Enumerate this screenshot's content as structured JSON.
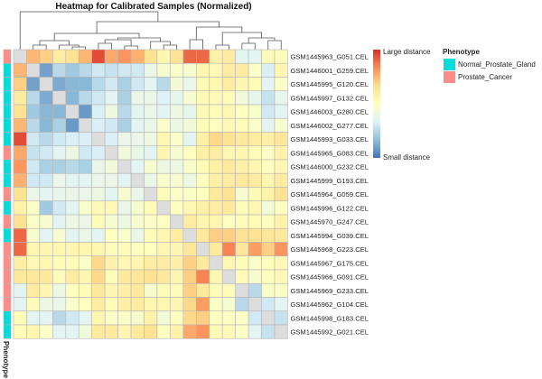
{
  "chart_data": {
    "type": "heatmap",
    "title": "Heatmap for Calibrated Samples (Normalized)",
    "rows": [
      "GSM1445963_G051.CEL",
      "GSM1446001_G259.CEL",
      "GSM1445995_G120.CEL",
      "GSM1445997_G132.CEL",
      "GSM1446003_G280.CEL",
      "GSM1446002_G277.CEL",
      "GSM1445993_G033.CEL",
      "GSM1445965_G083.CEL",
      "GSM1446000_G232.CEL",
      "GSM1445999_G193.CEL",
      "GSM1445964_G059.CEL",
      "GSM1445996_G122.CEL",
      "GSM1445970_G247.CEL",
      "GSM1445994_G039.CEL",
      "GSM1445968_G223.CEL",
      "GSM1445967_G175.CEL",
      "GSM1445966_G091.CEL",
      "GSM1445969_G233.CEL",
      "GSM1445962_G104.CEL",
      "GSM1445998_G183.CEL",
      "GSM1445992_G021.CEL"
    ],
    "phenotype": [
      "Prostate_Cancer",
      "Normal_Prostate_Gland",
      "Normal_Prostate_Gland",
      "Normal_Prostate_Gland",
      "Normal_Prostate_Gland",
      "Normal_Prostate_Gland",
      "Normal_Prostate_Gland",
      "Prostate_Cancer",
      "Normal_Prostate_Gland",
      "Normal_Prostate_Gland",
      "Prostate_Cancer",
      "Normal_Prostate_Gland",
      "Prostate_Cancer",
      "Normal_Prostate_Gland",
      "Prostate_Cancer",
      "Prostate_Cancer",
      "Prostate_Cancer",
      "Prostate_Cancer",
      "Prostate_Cancer",
      "Normal_Prostate_Gland",
      "Normal_Prostate_Gland"
    ],
    "value_range": [
      0,
      1
    ],
    "values": [
      [
        null,
        0.75,
        0.7,
        0.6,
        0.65,
        0.75,
        0.95,
        0.78,
        0.82,
        0.76,
        0.65,
        0.55,
        0.65,
        0.9,
        0.9,
        0.58,
        0.6,
        0.35,
        0.35,
        0.52,
        0.52
      ],
      [
        0.75,
        null,
        0.1,
        0.25,
        0.2,
        0.25,
        0.3,
        0.28,
        0.3,
        0.3,
        0.38,
        0.45,
        0.47,
        0.45,
        0.55,
        0.53,
        0.6,
        0.6,
        0.48,
        0.32,
        0.55
      ],
      [
        0.7,
        0.1,
        null,
        0.12,
        0.15,
        0.15,
        0.25,
        0.3,
        0.22,
        0.3,
        0.35,
        0.25,
        0.43,
        0.38,
        0.53,
        0.55,
        0.6,
        0.55,
        0.52,
        0.35,
        0.48
      ],
      [
        0.6,
        0.25,
        0.12,
        null,
        0.15,
        0.25,
        0.3,
        0.35,
        0.22,
        0.38,
        0.38,
        0.33,
        0.37,
        0.45,
        0.53,
        0.53,
        0.52,
        0.42,
        0.37,
        0.28,
        0.37
      ],
      [
        0.65,
        0.2,
        0.15,
        0.15,
        null,
        0.08,
        0.32,
        0.4,
        0.25,
        0.35,
        0.38,
        0.35,
        0.4,
        0.37,
        0.53,
        0.52,
        0.55,
        0.5,
        0.47,
        0.3,
        0.35
      ],
      [
        0.75,
        0.25,
        0.15,
        0.22,
        0.08,
        null,
        0.32,
        0.3,
        0.22,
        0.35,
        0.38,
        0.47,
        0.4,
        0.42,
        0.52,
        0.5,
        0.53,
        0.52,
        0.48,
        0.35,
        0.45
      ],
      [
        0.95,
        0.3,
        0.25,
        0.3,
        0.32,
        0.32,
        null,
        0.32,
        0.38,
        0.38,
        0.4,
        0.55,
        0.48,
        0.35,
        0.58,
        0.68,
        0.65,
        0.62,
        0.6,
        0.58,
        0.63
      ],
      [
        0.78,
        0.28,
        0.3,
        0.35,
        0.4,
        0.3,
        0.32,
        null,
        0.42,
        0.38,
        0.35,
        0.55,
        0.45,
        0.5,
        0.58,
        0.6,
        0.55,
        0.55,
        0.52,
        0.48,
        0.57
      ],
      [
        0.82,
        0.3,
        0.22,
        0.22,
        0.25,
        0.22,
        0.38,
        0.42,
        null,
        0.35,
        0.45,
        0.4,
        0.4,
        0.47,
        0.52,
        0.58,
        0.62,
        0.58,
        0.55,
        0.5,
        0.55
      ],
      [
        0.76,
        0.3,
        0.3,
        0.38,
        0.35,
        0.35,
        0.38,
        0.38,
        0.35,
        null,
        0.38,
        0.47,
        0.45,
        0.4,
        0.5,
        0.58,
        0.6,
        0.62,
        0.6,
        0.55,
        0.6
      ],
      [
        0.65,
        0.38,
        0.35,
        0.37,
        0.38,
        0.38,
        0.4,
        0.35,
        0.45,
        0.38,
        null,
        0.52,
        0.48,
        0.48,
        0.5,
        0.62,
        0.65,
        0.45,
        0.53,
        0.57,
        0.65
      ],
      [
        0.57,
        0.48,
        0.2,
        0.3,
        0.35,
        0.47,
        0.53,
        0.53,
        0.38,
        0.45,
        0.52,
        null,
        0.5,
        0.55,
        0.58,
        0.6,
        0.62,
        0.52,
        0.55,
        0.43,
        0.5
      ],
      [
        0.65,
        0.48,
        0.45,
        0.35,
        0.4,
        0.38,
        0.52,
        0.45,
        0.4,
        0.45,
        0.48,
        0.5,
        null,
        0.6,
        0.55,
        0.55,
        0.5,
        0.52,
        0.52,
        0.5,
        0.57
      ],
      [
        0.9,
        0.45,
        0.35,
        0.45,
        0.35,
        0.38,
        0.35,
        0.5,
        0.47,
        0.38,
        0.52,
        0.55,
        0.6,
        null,
        0.62,
        0.7,
        0.7,
        0.65,
        0.65,
        0.63,
        0.62
      ],
      [
        0.9,
        0.55,
        0.55,
        0.55,
        0.55,
        0.55,
        0.55,
        0.52,
        0.52,
        0.5,
        0.5,
        0.55,
        0.55,
        0.63,
        null,
        0.62,
        0.85,
        0.63,
        0.8,
        0.7,
        0.82
      ],
      [
        0.58,
        0.53,
        0.55,
        0.52,
        0.52,
        0.48,
        0.68,
        0.57,
        0.55,
        0.55,
        0.6,
        0.6,
        0.58,
        0.7,
        0.62,
        null,
        0.55,
        0.52,
        0.48,
        0.5,
        0.53
      ],
      [
        0.62,
        0.62,
        0.62,
        0.52,
        0.6,
        0.55,
        0.68,
        0.52,
        0.62,
        0.63,
        0.65,
        0.62,
        0.55,
        0.7,
        0.85,
        0.55,
        null,
        0.52,
        0.45,
        0.5,
        0.53
      ],
      [
        0.35,
        0.6,
        0.55,
        0.4,
        0.5,
        0.52,
        0.62,
        0.55,
        0.58,
        0.62,
        0.45,
        0.52,
        0.52,
        0.7,
        0.62,
        0.52,
        0.52,
        null,
        0.25,
        0.48,
        0.48
      ],
      [
        0.35,
        0.52,
        0.4,
        0.38,
        0.47,
        0.5,
        0.6,
        0.52,
        0.58,
        0.6,
        0.55,
        0.55,
        0.55,
        0.68,
        0.8,
        0.48,
        0.45,
        0.25,
        null,
        0.3,
        0.35
      ],
      [
        0.52,
        0.35,
        0.35,
        0.25,
        0.3,
        0.35,
        0.55,
        0.48,
        0.48,
        0.45,
        0.57,
        0.43,
        0.5,
        0.68,
        0.7,
        0.5,
        0.5,
        0.48,
        0.3,
        null,
        0.28
      ],
      [
        0.52,
        0.55,
        0.48,
        0.35,
        0.35,
        0.42,
        0.62,
        0.62,
        0.55,
        0.62,
        0.65,
        0.5,
        0.57,
        0.78,
        0.82,
        0.53,
        0.53,
        0.48,
        0.35,
        0.28,
        null
      ]
    ],
    "colorscale": [
      "#4575B4",
      "#91BFDB",
      "#E0F3F8",
      "#FFFFBF",
      "#FEE090",
      "#FC8D59",
      "#D73027"
    ],
    "diagonal_color": "#DDDDDD",
    "colorbar": {
      "top_label": "Large distance",
      "bottom_label": "Small distance"
    },
    "annotation_label": "Phenotype",
    "legend": {
      "title": "Phenotype",
      "items": [
        {
          "label": "Normal_Prostate_Gland",
          "color": "#00DDDD"
        },
        {
          "label": "Prostate_Cancer",
          "color": "#FF8C88"
        }
      ]
    },
    "column_dendrogram": true
  }
}
